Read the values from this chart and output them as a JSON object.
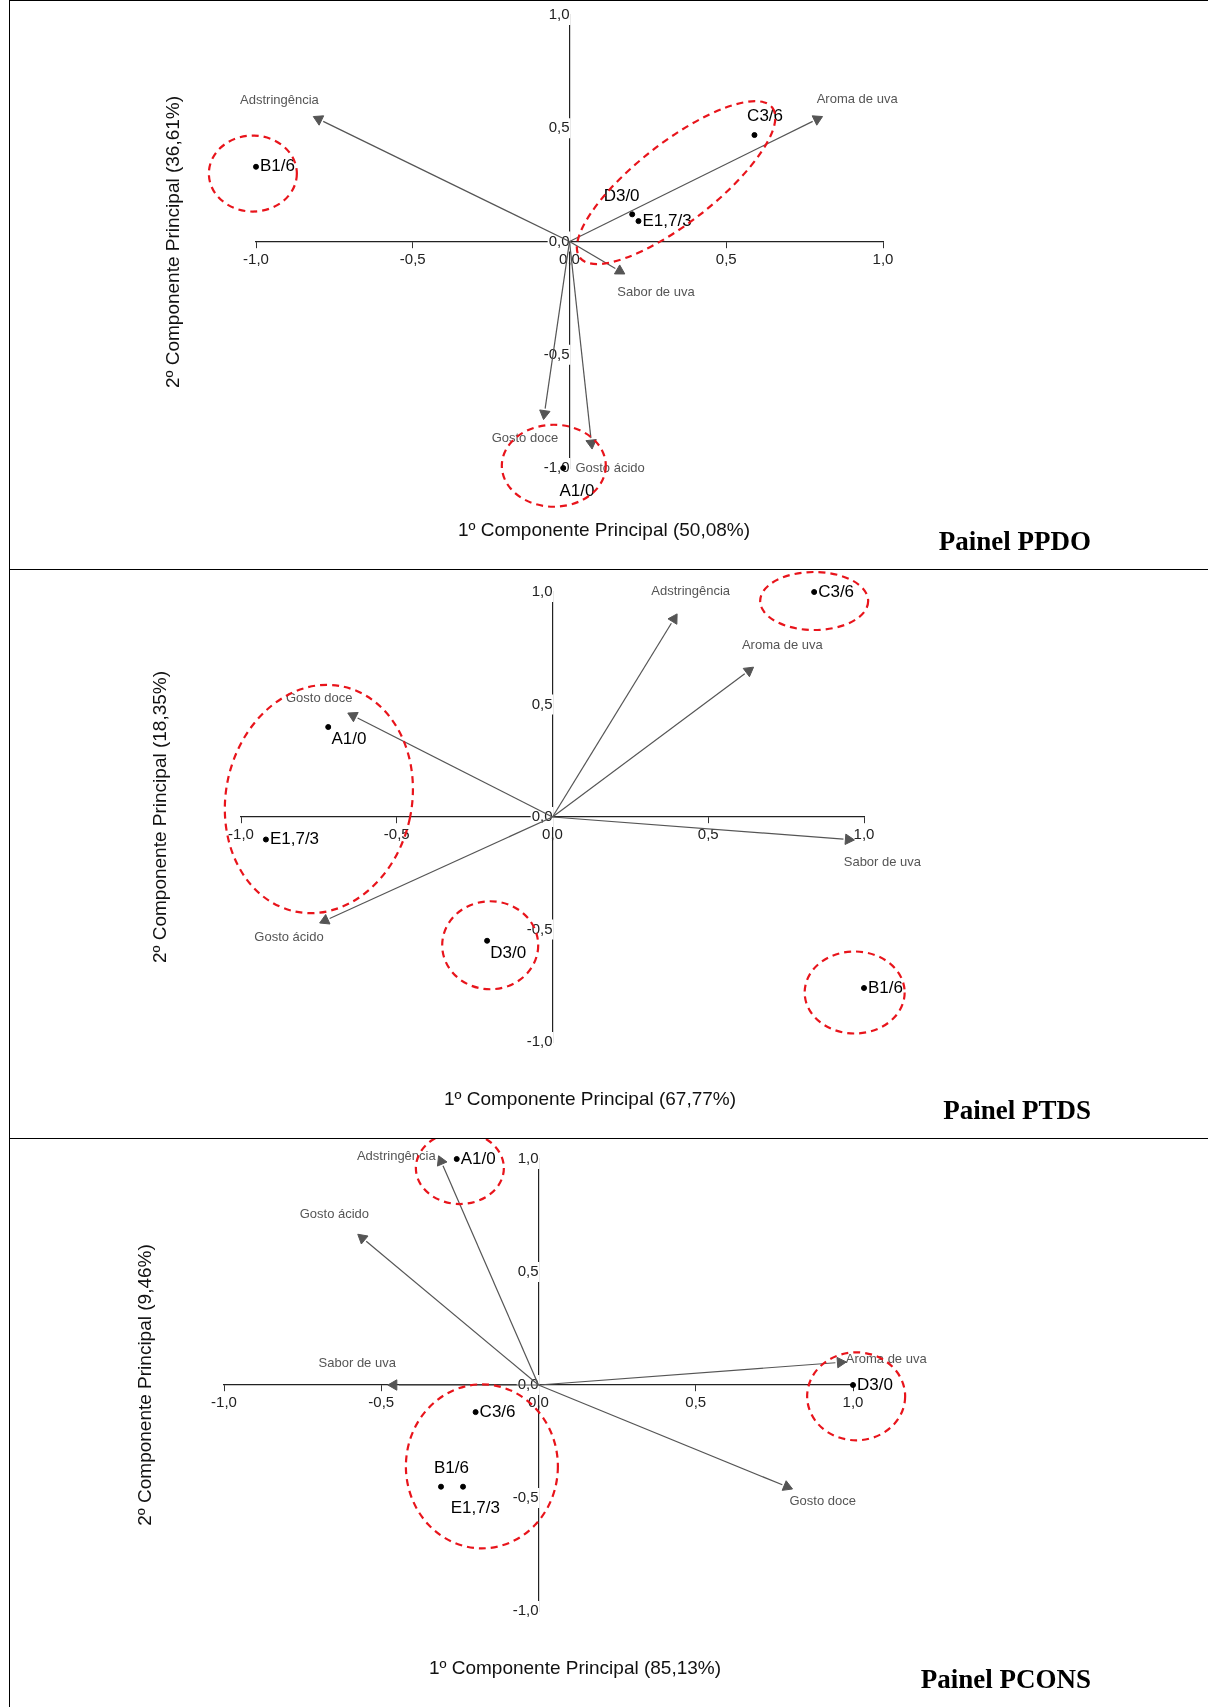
{
  "chart_data": [
    {
      "type": "scatter",
      "annotations": [
        "Painel PPDO"
      ],
      "xlabel": "1º Componente Principal (50,08%)",
      "ylabel": "2º Componente Principal (36,61%)",
      "xlim": [
        -1,
        1
      ],
      "ylim": [
        -1,
        1
      ],
      "xticks": [
        {
          "value": -1,
          "label": "-1,0"
        },
        {
          "value": -0.5,
          "label": "-0,5"
        },
        {
          "value": 0,
          "label": "0,0"
        },
        {
          "value": 0.5,
          "label": "0,5"
        },
        {
          "value": 1,
          "label": "1,0"
        }
      ],
      "yticks": [
        {
          "value": -1,
          "label": "-1,0"
        },
        {
          "value": -0.5,
          "label": "-0,5"
        },
        {
          "value": 0,
          "label": "0,0"
        },
        {
          "value": 0.5,
          "label": "0,5"
        },
        {
          "value": 1,
          "label": "1,0"
        }
      ],
      "grid": false,
      "legend": false,
      "series": [
        {
          "name": "Adstringência",
          "marker": "triangle",
          "color": "#555555",
          "x": [
            -0.8
          ],
          "values": [
            0.54
          ]
        },
        {
          "name": "Aroma de uva",
          "marker": "triangle",
          "color": "#555555",
          "x": [
            0.79
          ],
          "values": [
            0.54
          ]
        },
        {
          "name": "Sabor de uva",
          "marker": "triangle",
          "color": "#555555",
          "x": [
            0.16
          ],
          "values": [
            -0.13
          ]
        },
        {
          "name": "Gosto doce",
          "marker": "triangle",
          "color": "#555555",
          "x": [
            -0.08
          ],
          "values": [
            -0.76
          ]
        },
        {
          "name": "Gosto ácido",
          "marker": "triangle",
          "color": "#555555",
          "x": [
            0.07
          ],
          "values": [
            -0.89
          ]
        },
        {
          "name": "B1/6",
          "marker": "circle",
          "color": "#000000",
          "x": [
            -1.0
          ],
          "values": [
            0.33
          ]
        },
        {
          "name": "C3/6",
          "marker": "circle",
          "color": "#000000",
          "x": [
            0.59
          ],
          "values": [
            0.47
          ]
        },
        {
          "name": "D3/0",
          "marker": "circle",
          "color": "#000000",
          "x": [
            0.2
          ],
          "values": [
            0.12
          ]
        },
        {
          "name": "E1,7/3",
          "marker": "circle",
          "color": "#000000",
          "x": [
            0.22
          ],
          "values": [
            0.09
          ]
        },
        {
          "name": "A1/0",
          "marker": "circle",
          "color": "#000000",
          "x": [
            -0.02
          ],
          "values": [
            -1.0
          ]
        }
      ]
    },
    {
      "type": "scatter",
      "annotations": [
        "Painel PTDS"
      ],
      "xlabel": "1º Componente Principal (67,77%)",
      "ylabel": "2º Componente Principal (18,35%)",
      "xlim": [
        -1,
        1
      ],
      "ylim": [
        -1,
        1
      ],
      "xticks": [
        {
          "value": -1,
          "label": "-1,0"
        },
        {
          "value": -0.5,
          "label": "-0,5"
        },
        {
          "value": 0,
          "label": "0,0"
        },
        {
          "value": 0.5,
          "label": "0,5"
        },
        {
          "value": 1,
          "label": "1,0"
        }
      ],
      "yticks": [
        {
          "value": -1,
          "label": "-1,0"
        },
        {
          "value": -0.5,
          "label": "-0,5"
        },
        {
          "value": 0,
          "label": "0,0"
        },
        {
          "value": 0.5,
          "label": "0,5"
        },
        {
          "value": 1,
          "label": "1,0"
        }
      ],
      "grid": false,
      "legend": false,
      "series": [
        {
          "name": "Adstringência",
          "marker": "triangle",
          "color": "#555555",
          "x": [
            0.39
          ],
          "values": [
            0.88
          ]
        },
        {
          "name": "Aroma de uva",
          "marker": "triangle",
          "color": "#555555",
          "x": [
            0.63
          ],
          "values": [
            0.65
          ]
        },
        {
          "name": "Gosto doce",
          "marker": "triangle",
          "color": "#555555",
          "x": [
            -0.64
          ],
          "values": [
            0.45
          ]
        },
        {
          "name": "Sabor de uva",
          "marker": "triangle",
          "color": "#555555",
          "x": [
            0.95
          ],
          "values": [
            -0.1
          ]
        },
        {
          "name": "Gosto ácido",
          "marker": "triangle",
          "color": "#555555",
          "x": [
            -0.73
          ],
          "values": [
            -0.46
          ]
        },
        {
          "name": "C3/6",
          "marker": "circle",
          "color": "#000000",
          "x": [
            0.84
          ],
          "values": [
            1.0
          ]
        },
        {
          "name": "A1/0",
          "marker": "circle",
          "color": "#000000",
          "x": [
            -0.72
          ],
          "values": [
            0.4
          ]
        },
        {
          "name": "E1,7/3",
          "marker": "circle",
          "color": "#000000",
          "x": [
            -0.92
          ],
          "values": [
            -0.1
          ]
        },
        {
          "name": "D3/0",
          "marker": "circle",
          "color": "#000000",
          "x": [
            -0.21
          ],
          "values": [
            -0.55
          ]
        },
        {
          "name": "B1/6",
          "marker": "circle",
          "color": "#000000",
          "x": [
            1.0
          ],
          "values": [
            -0.76
          ]
        }
      ]
    },
    {
      "type": "scatter",
      "annotations": [
        "Painel PCONS"
      ],
      "xlabel": "1º Componente Principal (85,13%)",
      "ylabel": "2º Componente Principal (9,46%)",
      "xlim": [
        -1,
        1
      ],
      "ylim": [
        -1,
        1
      ],
      "xticks": [
        {
          "value": -1,
          "label": "-1,0"
        },
        {
          "value": -0.5,
          "label": "-0,5"
        },
        {
          "value": 0,
          "label": "0,0"
        },
        {
          "value": 0.5,
          "label": "0,5"
        },
        {
          "value": 1,
          "label": "1,0"
        }
      ],
      "yticks": [
        {
          "value": -1,
          "label": "-1,0"
        },
        {
          "value": -0.5,
          "label": "-0,5"
        },
        {
          "value": 0,
          "label": "0,0"
        },
        {
          "value": 0.5,
          "label": "0,5"
        },
        {
          "value": 1,
          "label": "1,0"
        }
      ],
      "grid": false,
      "legend": false,
      "series": [
        {
          "name": "Adstringência",
          "marker": "triangle",
          "color": "#555555",
          "x": [
            -0.31
          ],
          "values": [
            0.99
          ]
        },
        {
          "name": "Gosto ácido",
          "marker": "triangle",
          "color": "#555555",
          "x": [
            -0.56
          ],
          "values": [
            0.65
          ]
        },
        {
          "name": "Sabor de uva",
          "marker": "triangle",
          "color": "#555555",
          "x": [
            -0.46
          ],
          "values": [
            0.0
          ]
        },
        {
          "name": "Aroma de uva",
          "marker": "triangle",
          "color": "#555555",
          "x": [
            0.96
          ],
          "values": [
            0.1
          ]
        },
        {
          "name": "Gosto doce",
          "marker": "triangle",
          "color": "#555555",
          "x": [
            0.79
          ],
          "values": [
            -0.45
          ]
        },
        {
          "name": "A1/0",
          "marker": "circle",
          "color": "#000000",
          "x": [
            -0.26
          ],
          "values": [
            1.0
          ]
        },
        {
          "name": "C3/6",
          "marker": "circle",
          "color": "#000000",
          "x": [
            -0.2
          ],
          "values": [
            -0.12
          ]
        },
        {
          "name": "B1/6",
          "marker": "circle",
          "color": "#000000",
          "x": [
            -0.31
          ],
          "values": [
            -0.45
          ]
        },
        {
          "name": "E1,7/3",
          "marker": "circle",
          "color": "#000000",
          "x": [
            -0.24
          ],
          "values": [
            -0.45
          ]
        },
        {
          "name": "D3/0",
          "marker": "circle",
          "color": "#000000",
          "x": [
            1.0
          ],
          "values": [
            0.0
          ]
        }
      ]
    }
  ]
}
